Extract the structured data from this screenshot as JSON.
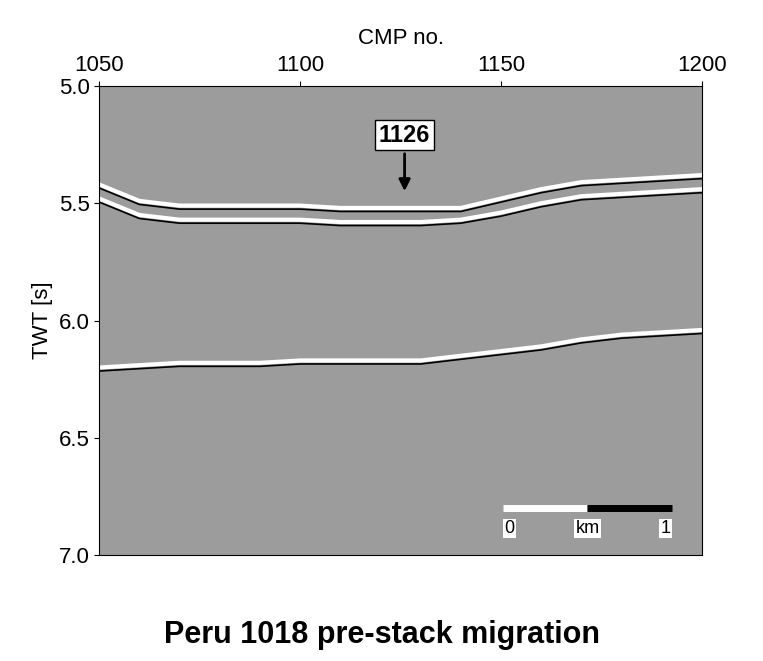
{
  "chart_data": {
    "type": "line",
    "title": "Peru 1018 pre-stack migration",
    "x_label": "CMP no.",
    "y_label": "TWT [s]",
    "x": [
      1050,
      1060,
      1070,
      1080,
      1090,
      1100,
      1110,
      1120,
      1130,
      1140,
      1150,
      1160,
      1170,
      1180,
      1190,
      1200
    ],
    "series": [
      {
        "color": "#ffffff",
        "values": [
          5.42,
          5.49,
          5.51,
          5.51,
          5.51,
          5.51,
          5.52,
          5.52,
          5.52,
          5.52,
          5.48,
          5.44,
          5.41,
          5.4,
          5.39,
          5.38
        ]
      },
      {
        "color": "#ffffff",
        "values": [
          5.48,
          5.55,
          5.57,
          5.57,
          5.57,
          5.57,
          5.58,
          5.58,
          5.58,
          5.57,
          5.54,
          5.5,
          5.47,
          5.46,
          5.45,
          5.44
        ]
      },
      {
        "color": "#ffffff",
        "values": [
          6.2,
          6.19,
          6.18,
          6.18,
          6.18,
          6.17,
          6.17,
          6.17,
          6.17,
          6.15,
          6.13,
          6.11,
          6.08,
          6.06,
          6.05,
          6.04
        ]
      }
    ],
    "xlim": [
      1050,
      1200
    ],
    "xticks": [
      1050,
      1100,
      1150,
      1200
    ],
    "ylim": [
      7.0,
      5.0
    ],
    "yticks": [
      5.0,
      5.5,
      6.0,
      6.5,
      7.0
    ],
    "annotation": {
      "text": "1126",
      "x": 1126,
      "y": 5.46
    },
    "scale_bar": {
      "start_label": "0",
      "unit": "km",
      "end_label": "1"
    },
    "grid": false
  }
}
